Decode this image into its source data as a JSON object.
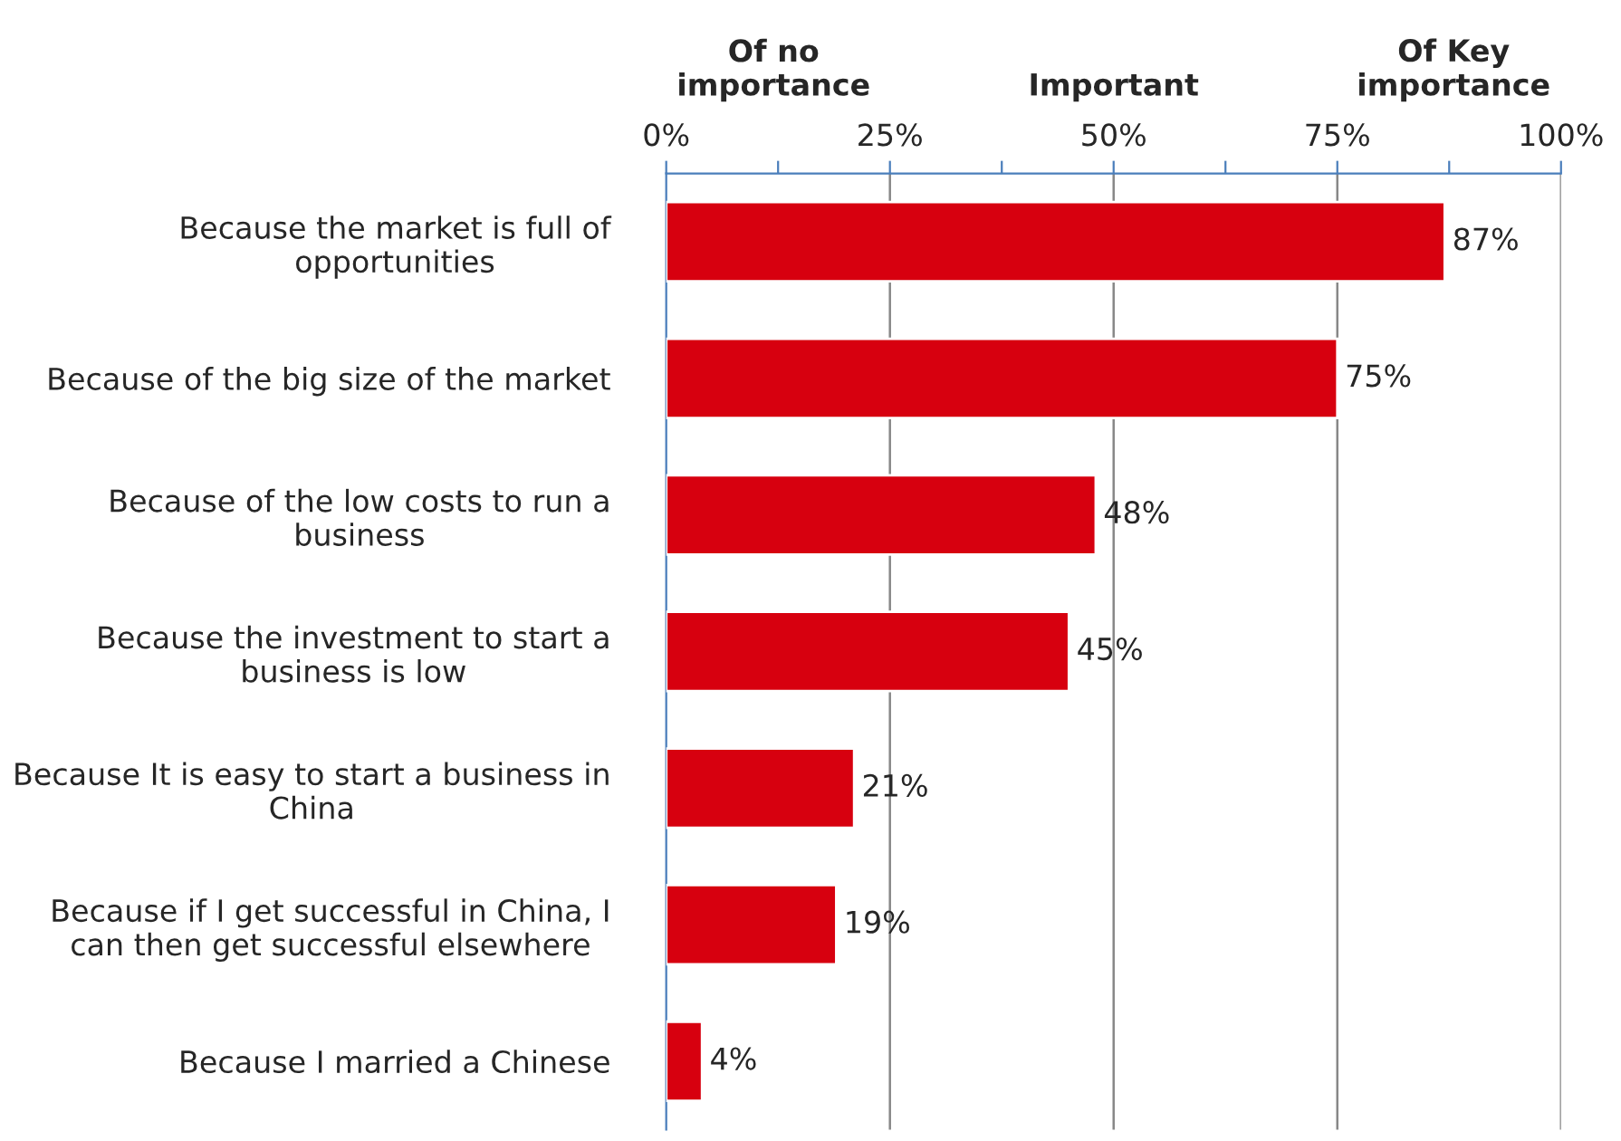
{
  "chart_data": {
    "type": "bar",
    "orientation": "horizontal",
    "categories": [
      "Because the market is full of\nopportunities",
      "Because of the big size of the market",
      "Because of the low costs to run a\nbusiness",
      "Because the investment to start a\nbusiness is low",
      "Because It is easy to start a business in\nChina",
      "Because if I get successful in China, I\ncan then get successful elsewhere",
      "Because I married a Chinese"
    ],
    "values": [
      87,
      75,
      48,
      45,
      21,
      19,
      4
    ],
    "value_labels": [
      "87%",
      "75%",
      "48%",
      "45%",
      "21%",
      "19%",
      "4%"
    ],
    "color": "#d7000f",
    "xlim": [
      0,
      100
    ],
    "xticks": [
      {
        "value": 0,
        "label": "0%"
      },
      {
        "value": 12.5,
        "label": null
      },
      {
        "value": 25,
        "label": "25%"
      },
      {
        "value": 37.5,
        "label": null
      },
      {
        "value": 50,
        "label": "50%"
      },
      {
        "value": 62.5,
        "label": null
      },
      {
        "value": 75,
        "label": "75%"
      },
      {
        "value": 87.5,
        "label": null
      },
      {
        "value": 100,
        "label": "100%"
      }
    ],
    "grid": "x",
    "annotations": [
      "Of no\nimportance",
      "Important",
      "Of Key\nimportance"
    ]
  }
}
